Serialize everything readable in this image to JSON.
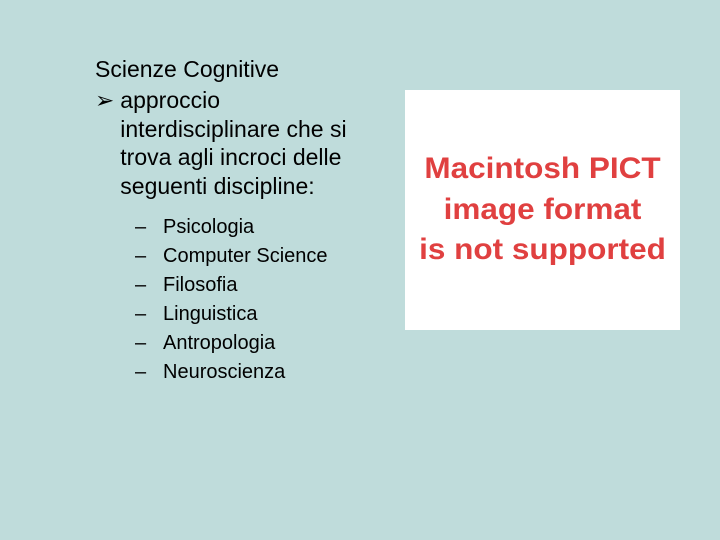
{
  "slide": {
    "title": "Scienze Cognitive",
    "bullet_glyph": "➢",
    "intro": "approccio interdisciplinare che si trova agli incroci delle seguenti discipline:",
    "disciplines": [
      "Psicologia",
      "Computer Science",
      "Filosofia",
      "Linguistica",
      "Antropologia",
      "Neuroscienza"
    ],
    "dash": "–"
  },
  "image_placeholder": {
    "line1": "Macintosh PICT",
    "line2": "image format",
    "line3": "is not supported",
    "text_color": "#e04040",
    "background": "#ffffff"
  },
  "colors": {
    "slide_background": "#bfdcdb",
    "text": "#000000"
  }
}
